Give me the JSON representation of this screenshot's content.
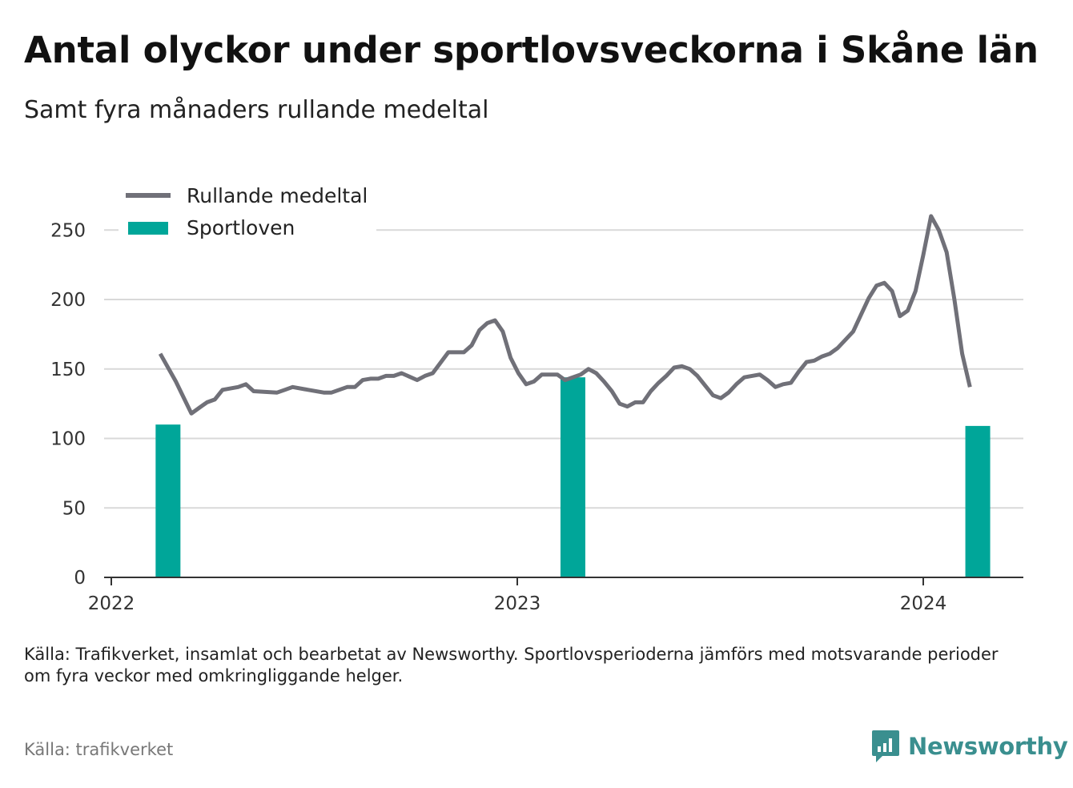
{
  "title": "Antal olyckor under sportlovsveckorna i Skåne län",
  "subtitle": "Samt fyra månaders rullande medeltal",
  "note": "Källa: Trafikverket, insamlat och bearbetat av Newsworthy. Sportlovsperioderna jämförs med motsvarande perioder om fyra veckor med omkringliggande helger.",
  "source": "Källa: trafikverket",
  "brand": "Newsworthy",
  "colors": {
    "line": "#707078",
    "bar": "#00a699",
    "grid": "#d9d9d9",
    "brand": "#3a8f8f"
  },
  "chart_data": {
    "type": "bar+line",
    "x_ticks": [
      "2022",
      "2023",
      "2024"
    ],
    "y_ticks": [
      "0",
      "50",
      "100",
      "150",
      "200",
      "250"
    ],
    "ylim": [
      0,
      270
    ],
    "grid": true,
    "legend": {
      "placement": "top-left",
      "entries": [
        {
          "label": "Rullande medeltal",
          "kind": "line"
        },
        {
          "label": "Sportloven",
          "kind": "bar"
        }
      ]
    },
    "bars": [
      {
        "date": "2022-02-21",
        "value": 110
      },
      {
        "date": "2023-02-20",
        "value": 144
      },
      {
        "date": "2024-02-19",
        "value": 109
      }
    ],
    "line": [
      [
        "2022-02-14",
        161
      ],
      [
        "2022-02-28",
        141
      ],
      [
        "2022-03-14",
        118
      ],
      [
        "2022-03-21",
        122
      ],
      [
        "2022-03-28",
        126
      ],
      [
        "2022-04-04",
        128
      ],
      [
        "2022-04-11",
        135
      ],
      [
        "2022-04-25",
        137
      ],
      [
        "2022-05-02",
        139
      ],
      [
        "2022-05-09",
        134
      ],
      [
        "2022-05-30",
        133
      ],
      [
        "2022-06-06",
        135
      ],
      [
        "2022-06-13",
        137
      ],
      [
        "2022-06-27",
        135
      ],
      [
        "2022-07-11",
        133
      ],
      [
        "2022-07-18",
        133
      ],
      [
        "2022-08-01",
        137
      ],
      [
        "2022-08-08",
        137
      ],
      [
        "2022-08-15",
        142
      ],
      [
        "2022-08-22",
        143
      ],
      [
        "2022-08-29",
        143
      ],
      [
        "2022-09-05",
        145
      ],
      [
        "2022-09-12",
        145
      ],
      [
        "2022-09-19",
        147
      ],
      [
        "2022-10-03",
        142
      ],
      [
        "2022-10-10",
        145
      ],
      [
        "2022-10-17",
        147
      ],
      [
        "2022-10-31",
        162
      ],
      [
        "2022-11-14",
        162
      ],
      [
        "2022-11-21",
        167
      ],
      [
        "2022-11-28",
        178
      ],
      [
        "2022-12-05",
        183
      ],
      [
        "2022-12-12",
        185
      ],
      [
        "2022-12-19",
        177
      ],
      [
        "2022-12-26",
        158
      ],
      [
        "2023-01-02",
        147
      ],
      [
        "2023-01-09",
        139
      ],
      [
        "2023-01-16",
        141
      ],
      [
        "2023-01-23",
        146
      ],
      [
        "2023-02-06",
        146
      ],
      [
        "2023-02-13",
        142
      ],
      [
        "2023-02-27",
        146
      ],
      [
        "2023-03-06",
        150
      ],
      [
        "2023-03-13",
        147
      ],
      [
        "2023-03-20",
        141
      ],
      [
        "2023-03-27",
        134
      ],
      [
        "2023-04-03",
        125
      ],
      [
        "2023-04-10",
        123
      ],
      [
        "2023-04-17",
        126
      ],
      [
        "2023-04-24",
        126
      ],
      [
        "2023-05-01",
        134
      ],
      [
        "2023-05-08",
        140
      ],
      [
        "2023-05-15",
        145
      ],
      [
        "2023-05-22",
        151
      ],
      [
        "2023-05-29",
        152
      ],
      [
        "2023-06-05",
        150
      ],
      [
        "2023-06-12",
        145
      ],
      [
        "2023-06-19",
        138
      ],
      [
        "2023-06-26",
        131
      ],
      [
        "2023-07-03",
        129
      ],
      [
        "2023-07-10",
        133
      ],
      [
        "2023-07-17",
        139
      ],
      [
        "2023-07-24",
        144
      ],
      [
        "2023-08-07",
        146
      ],
      [
        "2023-08-14",
        142
      ],
      [
        "2023-08-21",
        137
      ],
      [
        "2023-08-28",
        139
      ],
      [
        "2023-09-04",
        140
      ],
      [
        "2023-09-11",
        148
      ],
      [
        "2023-09-18",
        155
      ],
      [
        "2023-09-25",
        156
      ],
      [
        "2023-10-02",
        159
      ],
      [
        "2023-10-09",
        161
      ],
      [
        "2023-10-16",
        165
      ],
      [
        "2023-10-23",
        171
      ],
      [
        "2023-10-30",
        177
      ],
      [
        "2023-11-06",
        189
      ],
      [
        "2023-11-13",
        201
      ],
      [
        "2023-11-20",
        210
      ],
      [
        "2023-11-27",
        212
      ],
      [
        "2023-12-04",
        206
      ],
      [
        "2023-12-11",
        188
      ],
      [
        "2023-12-18",
        192
      ],
      [
        "2023-12-25",
        206
      ],
      [
        "2024-01-01",
        232
      ],
      [
        "2024-01-08",
        260
      ],
      [
        "2024-01-15",
        250
      ],
      [
        "2024-01-22",
        234
      ],
      [
        "2024-01-29",
        200
      ],
      [
        "2024-02-05",
        161
      ],
      [
        "2024-02-12",
        137
      ]
    ]
  }
}
